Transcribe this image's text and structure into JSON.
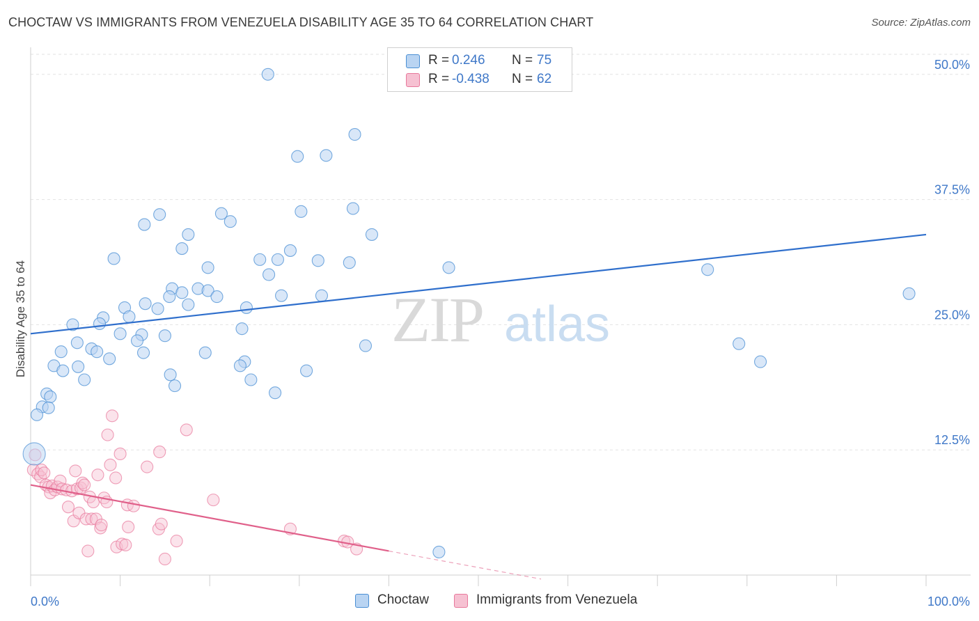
{
  "title": "CHOCTAW VS IMMIGRANTS FROM VENEZUELA DISABILITY AGE 35 TO 64 CORRELATION CHART",
  "source": "Source: ZipAtlas.com",
  "watermark": {
    "zip": "ZIP",
    "atlas": "atlas"
  },
  "legend": {
    "r_label": "R =",
    "n_label": "N =",
    "choctaw": {
      "r": "0.246",
      "n": "75"
    },
    "venezuela": {
      "r": "-0.438",
      "n": "62"
    }
  },
  "colors": {
    "blue": "#4a8fd4",
    "blue_fill": "#b9d4f2",
    "blue_line": "#2f6fcc",
    "pink": "#e8789b",
    "pink_fill": "#f6c1d2",
    "pink_line": "#e0608a",
    "tick_text": "#3f78c8",
    "grid": "#e2e2e2"
  },
  "chart_data": {
    "type": "scatter",
    "title": "CHOCTAW VS IMMIGRANTS FROM VENEZUELA DISABILITY AGE 35 TO 64 CORRELATION CHART",
    "xlabel": "",
    "ylabel": "Disability Age 35 to 64",
    "xlim": [
      0,
      100
    ],
    "ylim": [
      0,
      52
    ],
    "x_tick_labels": [
      "0.0%",
      "100.0%"
    ],
    "y_ticks": [
      12.5,
      25.0,
      37.5,
      50.0
    ],
    "y_tick_labels": [
      "12.5%",
      "25.0%",
      "37.5%",
      "50.0%"
    ],
    "grid": true,
    "legend_position": "top-center",
    "series": [
      {
        "name": "Choctaw",
        "color": "#4a8fd4",
        "trend": {
          "x": [
            0,
            100
          ],
          "y": [
            24.1,
            34.0
          ]
        },
        "points": [
          [
            26.5,
            50.0
          ],
          [
            36.2,
            44.0
          ],
          [
            29.8,
            41.8
          ],
          [
            33.0,
            41.9
          ],
          [
            30.2,
            36.3
          ],
          [
            36.0,
            36.6
          ],
          [
            14.4,
            36.0
          ],
          [
            21.3,
            36.1
          ],
          [
            22.3,
            35.3
          ],
          [
            12.7,
            35.0
          ],
          [
            17.6,
            34.0
          ],
          [
            38.1,
            34.0
          ],
          [
            16.9,
            32.6
          ],
          [
            29.0,
            32.4
          ],
          [
            25.6,
            31.5
          ],
          [
            27.6,
            31.5
          ],
          [
            32.1,
            31.4
          ],
          [
            35.6,
            31.2
          ],
          [
            9.3,
            31.6
          ],
          [
            19.8,
            30.7
          ],
          [
            46.7,
            30.7
          ],
          [
            75.6,
            30.5
          ],
          [
            26.6,
            30.0
          ],
          [
            15.8,
            28.6
          ],
          [
            18.7,
            28.6
          ],
          [
            19.8,
            28.4
          ],
          [
            16.9,
            28.2
          ],
          [
            28.0,
            27.9
          ],
          [
            32.5,
            27.9
          ],
          [
            20.8,
            27.8
          ],
          [
            15.5,
            27.8
          ],
          [
            12.8,
            27.1
          ],
          [
            17.6,
            27.0
          ],
          [
            10.5,
            26.7
          ],
          [
            14.2,
            26.6
          ],
          [
            24.1,
            26.7
          ],
          [
            98.1,
            28.1
          ],
          [
            8.1,
            25.7
          ],
          [
            11.0,
            25.8
          ],
          [
            7.7,
            25.1
          ],
          [
            4.7,
            25.0
          ],
          [
            23.6,
            24.6
          ],
          [
            10.0,
            24.1
          ],
          [
            12.4,
            24.0
          ],
          [
            15.0,
            23.9
          ],
          [
            11.9,
            23.4
          ],
          [
            5.2,
            23.2
          ],
          [
            6.8,
            22.6
          ],
          [
            37.4,
            22.9
          ],
          [
            79.1,
            23.1
          ],
          [
            3.4,
            22.3
          ],
          [
            7.4,
            22.3
          ],
          [
            12.6,
            22.2
          ],
          [
            8.8,
            21.6
          ],
          [
            19.5,
            22.2
          ],
          [
            23.9,
            21.3
          ],
          [
            81.5,
            21.3
          ],
          [
            2.6,
            20.9
          ],
          [
            5.3,
            20.8
          ],
          [
            23.4,
            20.9
          ],
          [
            3.6,
            20.4
          ],
          [
            30.8,
            20.4
          ],
          [
            15.6,
            20.0
          ],
          [
            6.0,
            19.5
          ],
          [
            24.6,
            19.5
          ],
          [
            16.1,
            18.9
          ],
          [
            1.8,
            18.1
          ],
          [
            2.2,
            17.8
          ],
          [
            27.3,
            18.2
          ],
          [
            1.3,
            16.8
          ],
          [
            2.0,
            16.7
          ],
          [
            0.7,
            16.0
          ],
          [
            45.6,
            2.3
          ]
        ]
      },
      {
        "name": "Immigrants from Venezuela",
        "color": "#e8789b",
        "trend": {
          "x": [
            0,
            40
          ],
          "y": [
            9.0,
            2.4
          ]
        },
        "trend_dashed": {
          "x": [
            40,
            57
          ],
          "y": [
            2.4,
            -0.4
          ]
        },
        "points": [
          [
            0.5,
            12.0
          ],
          [
            0.3,
            10.5
          ],
          [
            0.8,
            10.1
          ],
          [
            1.1,
            9.8
          ],
          [
            1.2,
            10.5
          ],
          [
            1.5,
            10.2
          ],
          [
            1.7,
            9.0
          ],
          [
            2.0,
            8.8
          ],
          [
            2.2,
            8.2
          ],
          [
            2.4,
            8.9
          ],
          [
            2.7,
            8.5
          ],
          [
            3.0,
            8.8
          ],
          [
            3.3,
            9.4
          ],
          [
            3.5,
            8.6
          ],
          [
            4.0,
            8.5
          ],
          [
            4.2,
            6.8
          ],
          [
            4.6,
            8.4
          ],
          [
            4.8,
            5.4
          ],
          [
            5.0,
            10.4
          ],
          [
            5.2,
            8.6
          ],
          [
            5.4,
            6.2
          ],
          [
            5.6,
            8.7
          ],
          [
            5.8,
            9.2
          ],
          [
            6.0,
            9.0
          ],
          [
            6.2,
            5.6
          ],
          [
            6.4,
            2.4
          ],
          [
            6.6,
            7.8
          ],
          [
            6.8,
            5.6
          ],
          [
            7.0,
            7.3
          ],
          [
            7.3,
            5.6
          ],
          [
            7.5,
            10.0
          ],
          [
            7.8,
            4.7
          ],
          [
            7.9,
            5.0
          ],
          [
            8.2,
            7.7
          ],
          [
            8.5,
            7.3
          ],
          [
            8.6,
            14.0
          ],
          [
            8.9,
            11.0
          ],
          [
            9.1,
            15.9
          ],
          [
            9.5,
            9.7
          ],
          [
            9.6,
            2.8
          ],
          [
            10.0,
            12.1
          ],
          [
            10.2,
            3.1
          ],
          [
            10.6,
            3.0
          ],
          [
            10.8,
            7.0
          ],
          [
            10.9,
            4.8
          ],
          [
            11.5,
            6.9
          ],
          [
            13.0,
            10.8
          ],
          [
            14.3,
            4.6
          ],
          [
            14.4,
            12.3
          ],
          [
            14.6,
            5.1
          ],
          [
            15.0,
            1.6
          ],
          [
            16.3,
            3.4
          ],
          [
            17.4,
            14.5
          ],
          [
            20.4,
            7.5
          ],
          [
            29.0,
            4.6
          ],
          [
            35.0,
            3.4
          ],
          [
            35.4,
            3.3
          ],
          [
            36.4,
            2.6
          ]
        ]
      }
    ]
  },
  "bottom_legend": [
    {
      "label": "Choctaw"
    },
    {
      "label": "Immigrants from Venezuela"
    }
  ]
}
